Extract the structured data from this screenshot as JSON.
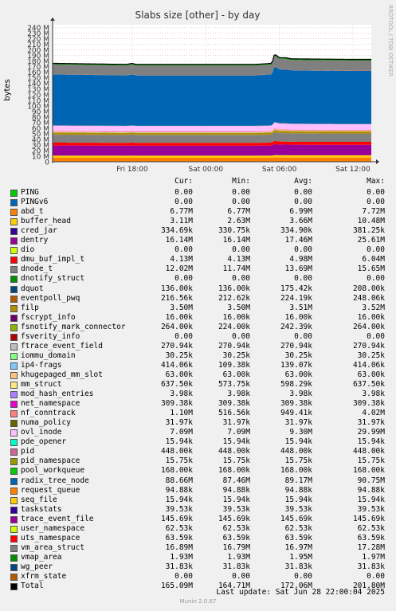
{
  "chart_data": {
    "type": "area",
    "title": "Slabs size [other] - by day",
    "ylabel": "bytes",
    "side_label": "RRDTOOL / TOBI OETIKER",
    "ylim": [
      0,
      245000000
    ],
    "yticks": [
      0,
      10,
      20,
      30,
      40,
      50,
      60,
      70,
      80,
      90,
      100,
      110,
      120,
      130,
      140,
      150,
      160,
      170,
      180,
      190,
      200,
      210,
      220,
      230,
      240
    ],
    "ytick_labels": [
      "0",
      "10 M",
      "20 M",
      "30 M",
      "40 M",
      "50 M",
      "60 M",
      "70 M",
      "80 M",
      "90 M",
      "100 M",
      "110 M",
      "120 M",
      "130 M",
      "140 M",
      "150 M",
      "160 M",
      "170 M",
      "180 M",
      "190 M",
      "200 M",
      "210 M",
      "220 M",
      "230 M",
      "240 M"
    ],
    "xlim_hours": [
      11.5,
      37.5
    ],
    "xticks": [
      {
        "hour": 18,
        "label": "Fri 18:00"
      },
      {
        "hour": 24,
        "label": "Sat 00:00"
      },
      {
        "hour": 30,
        "label": "Sat 06:00"
      },
      {
        "hour": 36,
        "label": "Sat 12:00"
      },
      {
        "hour": 42,
        "label": "Sat 18:00"
      }
    ],
    "total_series": {
      "name": "Total",
      "x_hours": [
        11.5,
        17.5,
        18.0,
        18.3,
        24.0,
        28.0,
        29.4,
        29.6,
        30.0,
        30.5,
        31.0,
        36.0,
        38.5,
        41.0,
        47.5
      ],
      "values_M": [
        176,
        174,
        176,
        174,
        174,
        174,
        176,
        193,
        186,
        186,
        184,
        183,
        183,
        165,
        164
      ]
    }
  },
  "legend": {
    "headers": [
      "Cur:",
      "Min:",
      "Avg:",
      "Max:"
    ],
    "rows": [
      {
        "name": "PING",
        "color": "#00cc00",
        "cur": "0.00",
        "min": "0.00",
        "avg": "0.00",
        "max": "0.00"
      },
      {
        "name": "PINGv6",
        "color": "#0066b3",
        "cur": "0.00",
        "min": "0.00",
        "avg": "0.00",
        "max": "0.00"
      },
      {
        "name": "abd_t",
        "color": "#ff8000",
        "cur": "6.77M",
        "min": "6.77M",
        "avg": "6.99M",
        "max": "7.72M"
      },
      {
        "name": "buffer_head",
        "color": "#ffcc00",
        "cur": "3.11M",
        "min": "2.63M",
        "avg": "3.66M",
        "max": "10.48M"
      },
      {
        "name": "cred_jar",
        "color": "#330099",
        "cur": "334.69k",
        "min": "330.75k",
        "avg": "334.90k",
        "max": "381.25k"
      },
      {
        "name": "dentry",
        "color": "#990099",
        "cur": "16.14M",
        "min": "16.14M",
        "avg": "17.46M",
        "max": "25.61M"
      },
      {
        "name": "dio",
        "color": "#ccff00",
        "cur": "0.00",
        "min": "0.00",
        "avg": "0.00",
        "max": "0.00"
      },
      {
        "name": "dmu_buf_impl_t",
        "color": "#ff0000",
        "cur": "4.13M",
        "min": "4.13M",
        "avg": "4.98M",
        "max": "6.04M"
      },
      {
        "name": "dnode_t",
        "color": "#808080",
        "cur": "12.02M",
        "min": "11.74M",
        "avg": "13.69M",
        "max": "15.65M"
      },
      {
        "name": "dnotify_struct",
        "color": "#008f00",
        "cur": "0.00",
        "min": "0.00",
        "avg": "0.00",
        "max": "0.00"
      },
      {
        "name": "dquot",
        "color": "#00487d",
        "cur": "136.00k",
        "min": "136.00k",
        "avg": "175.42k",
        "max": "208.00k"
      },
      {
        "name": "eventpoll_pwq",
        "color": "#b35a00",
        "cur": "216.56k",
        "min": "212.62k",
        "avg": "224.19k",
        "max": "248.06k"
      },
      {
        "name": "filp",
        "color": "#b38f00",
        "cur": "3.50M",
        "min": "3.50M",
        "avg": "3.51M",
        "max": "3.52M"
      },
      {
        "name": "fscrypt_info",
        "color": "#6b006b",
        "cur": "16.00k",
        "min": "16.00k",
        "avg": "16.00k",
        "max": "16.00k"
      },
      {
        "name": "fsnotify_mark_connector",
        "color": "#8fb300",
        "cur": "264.00k",
        "min": "224.00k",
        "avg": "242.39k",
        "max": "264.00k"
      },
      {
        "name": "fsverity_info",
        "color": "#b30000",
        "cur": "0.00",
        "min": "0.00",
        "avg": "0.00",
        "max": "0.00"
      },
      {
        "name": "ftrace_event_field",
        "color": "#bebebe",
        "cur": "270.94k",
        "min": "270.94k",
        "avg": "270.94k",
        "max": "270.94k"
      },
      {
        "name": "iommu_domain",
        "color": "#80ff80",
        "cur": "30.25k",
        "min": "30.25k",
        "avg": "30.25k",
        "max": "30.25k"
      },
      {
        "name": "ip4-frags",
        "color": "#80c9ff",
        "cur": "414.06k",
        "min": "109.38k",
        "avg": "139.07k",
        "max": "414.06k"
      },
      {
        "name": "khugepaged_mm_slot",
        "color": "#ffc080",
        "cur": "63.00k",
        "min": "63.00k",
        "avg": "63.00k",
        "max": "63.00k"
      },
      {
        "name": "mm_struct",
        "color": "#ffe680",
        "cur": "637.50k",
        "min": "573.75k",
        "avg": "598.29k",
        "max": "637.50k"
      },
      {
        "name": "mod_hash_entries",
        "color": "#aa80ff",
        "cur": "3.98k",
        "min": "3.98k",
        "avg": "3.98k",
        "max": "3.98k"
      },
      {
        "name": "net_namespace",
        "color": "#ee00cc",
        "cur": "309.38k",
        "min": "309.38k",
        "avg": "309.38k",
        "max": "309.38k"
      },
      {
        "name": "nf_conntrack",
        "color": "#ff8080",
        "cur": "1.10M",
        "min": "516.56k",
        "avg": "949.41k",
        "max": "4.02M"
      },
      {
        "name": "numa_policy",
        "color": "#666600",
        "cur": "31.97k",
        "min": "31.97k",
        "avg": "31.97k",
        "max": "31.97k"
      },
      {
        "name": "ovl_inode",
        "color": "#ffbfff",
        "cur": "7.09M",
        "min": "7.09M",
        "avg": "9.30M",
        "max": "29.99M"
      },
      {
        "name": "pde_opener",
        "color": "#00ffcc",
        "cur": "15.94k",
        "min": "15.94k",
        "avg": "15.94k",
        "max": "15.94k"
      },
      {
        "name": "pid",
        "color": "#cc6699",
        "cur": "448.00k",
        "min": "448.00k",
        "avg": "448.00k",
        "max": "448.00k"
      },
      {
        "name": "pid_namespace",
        "color": "#999900",
        "cur": "15.75k",
        "min": "15.75k",
        "avg": "15.75k",
        "max": "15.75k"
      },
      {
        "name": "pool_workqueue",
        "color": "#00cc00",
        "cur": "168.00k",
        "min": "168.00k",
        "avg": "168.00k",
        "max": "168.00k"
      },
      {
        "name": "radix_tree_node",
        "color": "#0066b3",
        "cur": "88.66M",
        "min": "87.46M",
        "avg": "89.17M",
        "max": "90.75M"
      },
      {
        "name": "request_queue",
        "color": "#ff8000",
        "cur": "94.88k",
        "min": "94.88k",
        "avg": "94.88k",
        "max": "94.88k"
      },
      {
        "name": "seq_file",
        "color": "#ffcc00",
        "cur": "15.94k",
        "min": "15.94k",
        "avg": "15.94k",
        "max": "15.94k"
      },
      {
        "name": "taskstats",
        "color": "#330099",
        "cur": "39.53k",
        "min": "39.53k",
        "avg": "39.53k",
        "max": "39.53k"
      },
      {
        "name": "trace_event_file",
        "color": "#990099",
        "cur": "145.69k",
        "min": "145.69k",
        "avg": "145.69k",
        "max": "145.69k"
      },
      {
        "name": "user_namespace",
        "color": "#ccff00",
        "cur": "62.53k",
        "min": "62.53k",
        "avg": "62.53k",
        "max": "62.53k"
      },
      {
        "name": "uts_namespace",
        "color": "#ff0000",
        "cur": "63.59k",
        "min": "63.59k",
        "avg": "63.59k",
        "max": "63.59k"
      },
      {
        "name": "vm_area_struct",
        "color": "#808080",
        "cur": "16.89M",
        "min": "16.79M",
        "avg": "16.97M",
        "max": "17.28M"
      },
      {
        "name": "vmap_area",
        "color": "#008f00",
        "cur": "1.93M",
        "min": "1.93M",
        "avg": "1.95M",
        "max": "1.97M"
      },
      {
        "name": "wg_peer",
        "color": "#00487d",
        "cur": "31.83k",
        "min": "31.83k",
        "avg": "31.83k",
        "max": "31.83k"
      },
      {
        "name": "xfrm_state",
        "color": "#b35a00",
        "cur": "0.00",
        "min": "0.00",
        "avg": "0.00",
        "max": "0.00"
      },
      {
        "name": "Total",
        "color": "#000000",
        "cur": "165.09M",
        "min": "164.71M",
        "avg": "172.06M",
        "max": "201.80M"
      }
    ]
  },
  "footer": {
    "last_update": "Last update: Sat Jun 28 22:00:04 2025",
    "munin": "Munin 2.0.67"
  }
}
